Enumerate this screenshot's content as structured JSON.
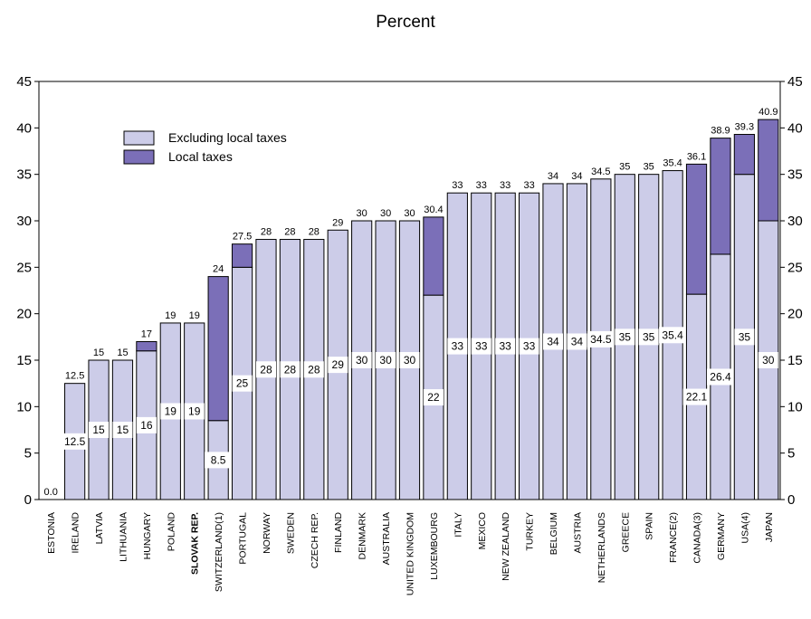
{
  "chart_data": {
    "type": "bar",
    "stacked": true,
    "title": "Percent",
    "ylim": [
      0,
      45
    ],
    "yticks": [
      0,
      5,
      10,
      15,
      20,
      25,
      30,
      35,
      40,
      45
    ],
    "y_axis_both_sides": true,
    "legend_placement": "top-left",
    "highlight_category": "SLOVAK REP.",
    "colors": {
      "excluding_local_taxes": "#cccce8",
      "local_taxes": "#7b6fb8"
    },
    "categories": [
      "ESTONIA",
      "IRELAND",
      "LATVIA",
      "LITHUANIA",
      "HUNGARY",
      "POLAND",
      "SLOVAK REP.",
      "SWITZERLAND(1)",
      "PORTUGAL",
      "NORWAY",
      "SWEDEN",
      "CZECH REP.",
      "FINLAND",
      "DENMARK",
      "AUSTRALIA",
      "UNITED KINGDOM",
      "LUXEMBOURG",
      "ITALY",
      "MEXICO",
      "NEW ZEALAND",
      "TURKEY",
      "BELGIUM",
      "AUSTRIA",
      "NETHERLANDS",
      "GREECE",
      "SPAIN",
      "FRANCE(2)",
      "CANADA(3)",
      "GERMANY",
      "USA(4)",
      "JAPAN"
    ],
    "series": [
      {
        "name": "Excluding local taxes",
        "values": [
          0,
          12.5,
          15,
          15,
          16,
          19,
          19,
          8.5,
          25,
          28,
          28,
          28,
          29,
          30,
          30,
          30,
          22,
          33,
          33,
          33,
          33,
          34,
          34,
          34.5,
          35,
          35,
          35.4,
          22.1,
          26.4,
          35,
          30
        ]
      },
      {
        "name": "Local taxes",
        "values": [
          0,
          0,
          0,
          0,
          1,
          0,
          0,
          15.5,
          2.5,
          0,
          0,
          0,
          0,
          0,
          0,
          0,
          8.4,
          0,
          0,
          0,
          0,
          0,
          0,
          0,
          0,
          0,
          0,
          14,
          12.5,
          4.3,
          10.9
        ]
      }
    ],
    "total_labels": [
      "0.0",
      "12.5",
      "15",
      "15",
      "17",
      "19",
      "19",
      "24",
      "27.5",
      "28",
      "28",
      "28",
      "29",
      "30",
      "30",
      "30",
      "30.4",
      "33",
      "33",
      "33",
      "33",
      "34",
      "34",
      "34.5",
      "35",
      "35",
      "35.4",
      "36.1",
      "38.9",
      "39.3",
      "40.9"
    ],
    "inner_labels": [
      "",
      "12.5",
      "15",
      "15",
      "16",
      "19",
      "19",
      "8.5",
      "25",
      "28",
      "28",
      "28",
      "29",
      "30",
      "30",
      "30",
      "22",
      "33",
      "33",
      "33",
      "33",
      "34",
      "34",
      "34.5",
      "35",
      "35",
      "35.4",
      "22.1",
      "26.4",
      "35",
      "30"
    ]
  }
}
